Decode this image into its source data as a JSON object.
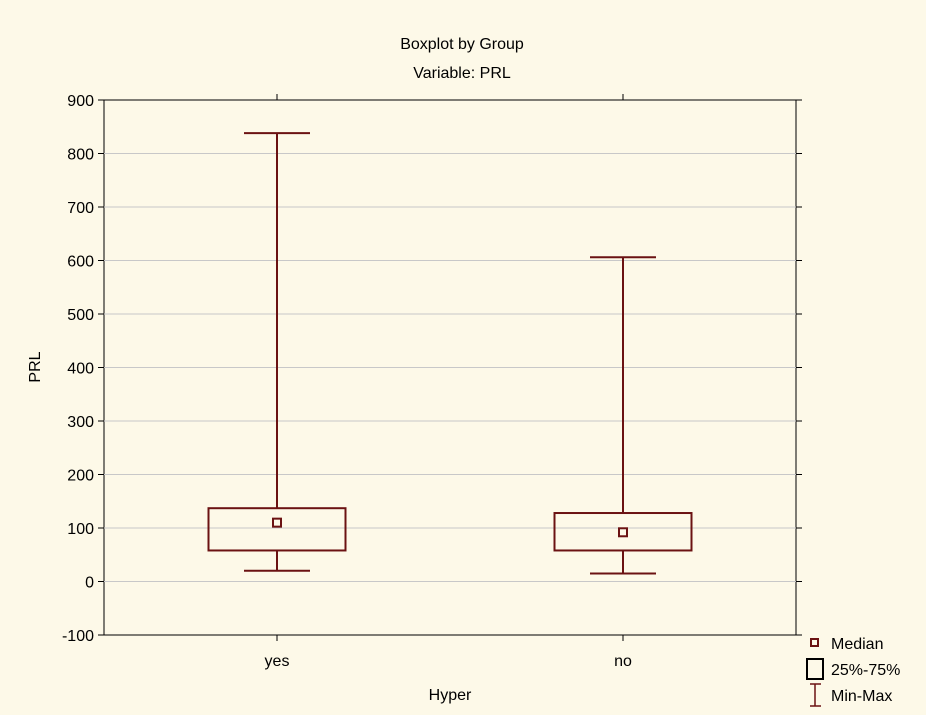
{
  "chart_data": {
    "type": "boxplot",
    "title": "Boxplot by Group",
    "subtitle": "Variable: PRL",
    "xlabel": "Hyper",
    "ylabel": "PRL",
    "ylim": [
      -100,
      900
    ],
    "yticks": [
      -100,
      0,
      100,
      200,
      300,
      400,
      500,
      600,
      700,
      800,
      900
    ],
    "grid": true,
    "legend_position": "bottom-right",
    "color": "#6b1212",
    "categories": [
      "yes",
      "no"
    ],
    "groups": [
      {
        "name": "yes",
        "min": 20,
        "q1": 58,
        "median": 110,
        "q3": 137,
        "max": 838
      },
      {
        "name": "no",
        "min": 15,
        "q1": 58,
        "median": 92,
        "q3": 128,
        "max": 606
      }
    ],
    "legend": [
      {
        "icon": "median-marker-icon",
        "label": "Median"
      },
      {
        "icon": "box-icon",
        "label": "25%-75%"
      },
      {
        "icon": "whisker-icon",
        "label": "Min-Max"
      }
    ]
  }
}
